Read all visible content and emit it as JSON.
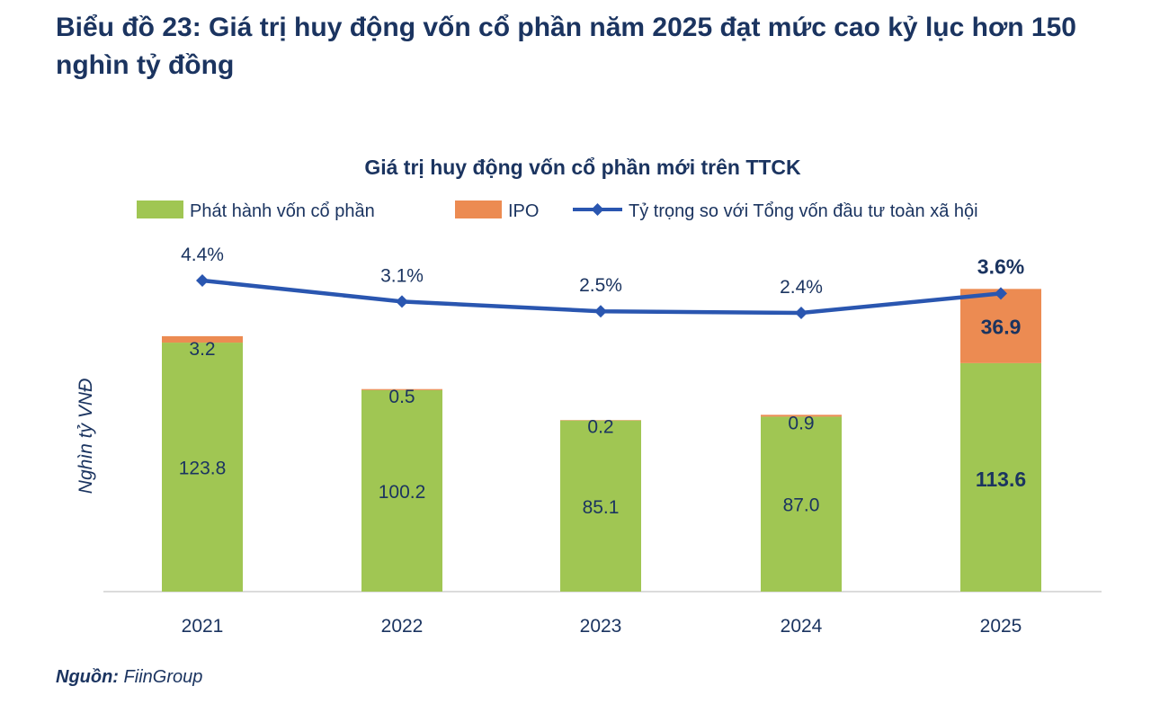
{
  "page_title": "Biểu đồ 23: Giá trị huy động vốn cổ phần năm 2025 đạt mức cao kỷ lục hơn 150 nghìn tỷ đồng",
  "source_label": "Nguồn:",
  "source_value": "FiinGroup",
  "chart_data": {
    "type": "bar",
    "stacked": true,
    "title": "Giá trị huy động vốn cổ phần mới trên TTCK",
    "ylabel": "Nghìn tỷ VNĐ",
    "xlabel": "",
    "categories": [
      "2021",
      "2022",
      "2023",
      "2024",
      "2025"
    ],
    "series": [
      {
        "name": "Phát hành vốn cổ phần",
        "type": "bar",
        "color": "#a0c653",
        "values": [
          123.8,
          100.2,
          85.1,
          87.0,
          113.6
        ],
        "labels": [
          "123.8",
          "100.2",
          "85.1",
          "87.0",
          "113.6"
        ]
      },
      {
        "name": "IPO",
        "type": "bar",
        "color": "#ec8b52",
        "values": [
          3.2,
          0.5,
          0.2,
          0.9,
          36.9
        ],
        "labels": [
          "3.2",
          "0.5",
          "0.2",
          "0.9",
          "36.9"
        ]
      },
      {
        "name": "Tỷ trọng so với Tổng vốn đầu tư toàn xã hội",
        "type": "line",
        "axis": "secondary",
        "color": "#2a56b0",
        "values": [
          4.4,
          3.1,
          2.5,
          2.4,
          3.6
        ],
        "labels": [
          "4.4%",
          "3.1%",
          "2.5%",
          "2.4%",
          "3.6%"
        ]
      }
    ],
    "legend_position": "top",
    "grid": false,
    "highlight_category": "2025",
    "text_color": "#1b3460"
  }
}
